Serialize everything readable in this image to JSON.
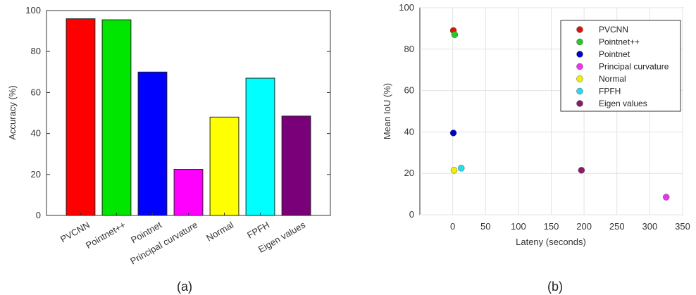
{
  "chart_data": [
    {
      "type": "bar",
      "ylabel": "Accuracy (%)",
      "xlabel": "",
      "ylim": [
        0,
        100
      ],
      "yticks": [
        0,
        20,
        40,
        60,
        80,
        100
      ],
      "categories": [
        "PVCNN",
        "Pointnet++",
        "Pointnet",
        "Principal curvature",
        "Normal",
        "FPFH",
        "Eigen values"
      ],
      "values": [
        96,
        95.5,
        70,
        22.5,
        48,
        67,
        48.5
      ],
      "colors": [
        "#ff0000",
        "#00e600",
        "#0000ff",
        "#ff00ff",
        "#ffff00",
        "#00ffff",
        "#7a007a"
      ],
      "caption": "(a)"
    },
    {
      "type": "scatter",
      "xlabel": "Lateny (seconds)",
      "ylabel": "Mean IoU (%)",
      "xlim": [
        -50,
        350
      ],
      "ylim": [
        0,
        100
      ],
      "xticks": [
        0,
        50,
        100,
        150,
        200,
        250,
        300,
        350
      ],
      "yticks": [
        0,
        20,
        40,
        60,
        80,
        100
      ],
      "grid": true,
      "legend_position": "top-right",
      "series": [
        {
          "name": "PVCNN",
          "x": 1,
          "y": 89,
          "color": "#e01010"
        },
        {
          "name": "Pointnet++",
          "x": 3,
          "y": 87,
          "color": "#22cc22"
        },
        {
          "name": "Pointnet",
          "x": 1,
          "y": 39.5,
          "color": "#0000cc"
        },
        {
          "name": "Principal curvature",
          "x": 325,
          "y": 8.5,
          "color": "#ee33ee"
        },
        {
          "name": "Normal",
          "x": 2,
          "y": 21.5,
          "color": "#f0f000"
        },
        {
          "name": "FPFH",
          "x": 13,
          "y": 22.5,
          "color": "#22ddee"
        },
        {
          "name": "Eigen values",
          "x": 196,
          "y": 21.5,
          "color": "#8a1a6a"
        }
      ],
      "caption": "(b)"
    }
  ]
}
